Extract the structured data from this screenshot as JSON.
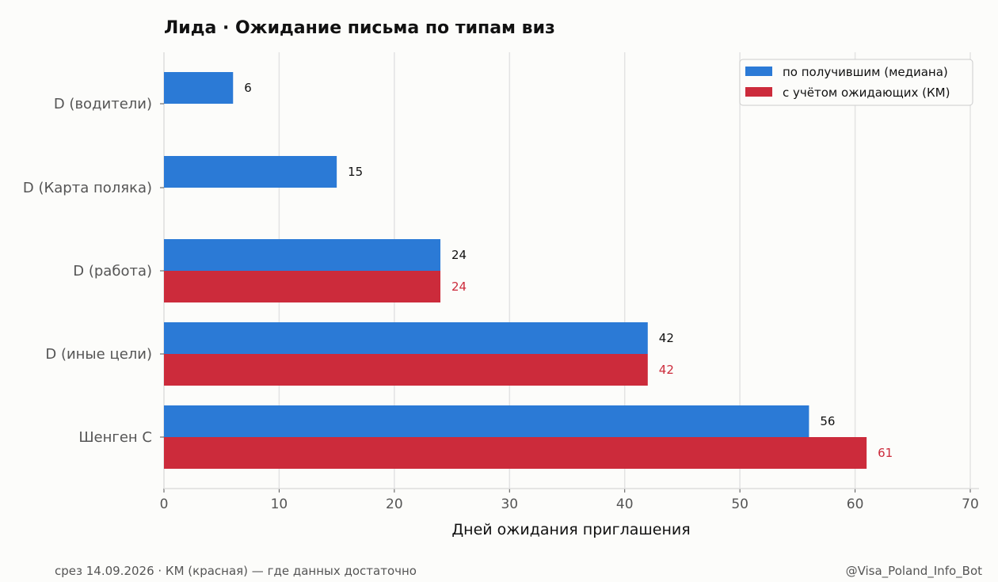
{
  "chart_data": {
    "type": "bar",
    "orientation": "horizontal",
    "title": "Лида · Ожидание письма по типам виз",
    "xlabel": "Дней ожидания приглашения",
    "ylabel": "",
    "xlim": [
      0,
      70
    ],
    "xticks": [
      0,
      10,
      20,
      30,
      40,
      50,
      60,
      70
    ],
    "grid": "vertical",
    "legend_position": "top-right",
    "categories": [
      "D (водители)",
      "D (Карта поляка)",
      "D (работа)",
      "D (иные цели)",
      "Шенген C"
    ],
    "series": [
      {
        "name": "по получившим (медиана)",
        "color": "#2b7ad6",
        "label_color": "#111111",
        "values": [
          6,
          15,
          24,
          42,
          56
        ]
      },
      {
        "name": "с учётом ожидающих (КМ)",
        "color": "#cc2b3b",
        "label_color": "#cc2b3b",
        "values": [
          null,
          null,
          24,
          42,
          61
        ]
      }
    ]
  },
  "footer": {
    "left": "срез 14.09.2026 · КМ (красная) — где данных достаточно",
    "right": "@Visa_Poland_Info_Bot"
  }
}
